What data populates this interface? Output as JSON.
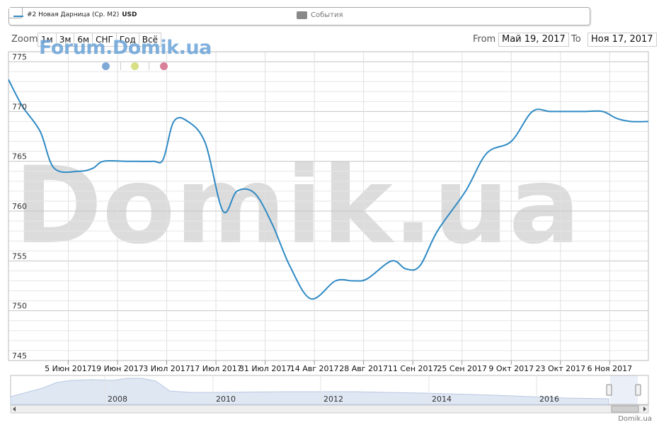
{
  "legend": {
    "series_label": "#2 Новая Дарница (Ср. М2)",
    "series_unit": "USD",
    "events_label": "События"
  },
  "toolbar": {
    "zoom_label": "Zoom",
    "zoom_buttons": [
      "1м",
      "3м",
      "6м",
      "СНГ",
      "Год",
      "Всё"
    ],
    "from_label": "From",
    "from_value": "Май 19, 2017",
    "to_label": "To",
    "to_value": "Ноя 17, 2017"
  },
  "forum_watermark": "Forum.Domik.ua",
  "main_watermark": "Domik.ua",
  "credit": "Domik.ua",
  "colors": {
    "series": "#2f8ac4",
    "grid": "#cccccc",
    "dot_blue": "#7ea9d6",
    "dot_yellow": "#d8df85",
    "dot_pink": "#d97f9a",
    "navigator_fill": "#dfe7f3"
  },
  "chart_data": {
    "type": "line",
    "ylim": [
      745,
      776
    ],
    "yticks": [
      745,
      750,
      755,
      760,
      765,
      770,
      775
    ],
    "x_range": [
      "2017-05-19",
      "2017-11-17"
    ],
    "xtick_labels": [
      "5 Июн 2017",
      "19 Июн 2017",
      "3 Июл 2017",
      "17 Июл 2017",
      "31 Июл 2017",
      "14 Авг 2017",
      "28 Авг 2017",
      "11 Сен 2017",
      "25 Сен 2017",
      "9 Окт 2017",
      "23 Окт 2017",
      "6 Ноя 2017"
    ],
    "xtick_dates": [
      "2017-06-05",
      "2017-06-19",
      "2017-07-03",
      "2017-07-17",
      "2017-07-31",
      "2017-08-14",
      "2017-08-28",
      "2017-09-11",
      "2017-09-25",
      "2017-10-09",
      "2017-10-23",
      "2017-11-06"
    ],
    "series": [
      {
        "x": [
          "2017-05-19",
          "2017-05-23",
          "2017-05-28",
          "2017-06-01",
          "2017-06-08",
          "2017-06-12",
          "2017-06-15",
          "2017-06-22",
          "2017-06-29",
          "2017-07-02",
          "2017-07-05",
          "2017-07-09",
          "2017-07-14",
          "2017-07-19",
          "2017-07-23",
          "2017-07-28",
          "2017-08-02",
          "2017-08-07",
          "2017-08-13",
          "2017-08-20",
          "2017-08-25",
          "2017-08-29",
          "2017-09-05",
          "2017-09-09",
          "2017-09-13",
          "2017-09-18",
          "2017-09-26",
          "2017-10-02",
          "2017-10-09",
          "2017-10-15",
          "2017-10-20",
          "2017-10-25",
          "2017-10-30",
          "2017-11-04",
          "2017-11-08",
          "2017-11-12",
          "2017-11-17"
        ],
        "y": [
          773.2,
          770.5,
          768,
          764.3,
          764,
          764.3,
          765,
          765,
          765,
          765.2,
          769,
          769,
          766.8,
          760,
          762,
          761.8,
          758.7,
          754.5,
          751.2,
          753,
          753,
          753.2,
          755,
          754.2,
          754.5,
          758,
          762,
          765.8,
          767,
          770,
          770,
          770,
          770,
          770,
          769.3,
          769,
          769
        ]
      }
    ],
    "navigator": {
      "year_labels": [
        "2008",
        "2010",
        "2012",
        "2014",
        "2016"
      ]
    }
  }
}
